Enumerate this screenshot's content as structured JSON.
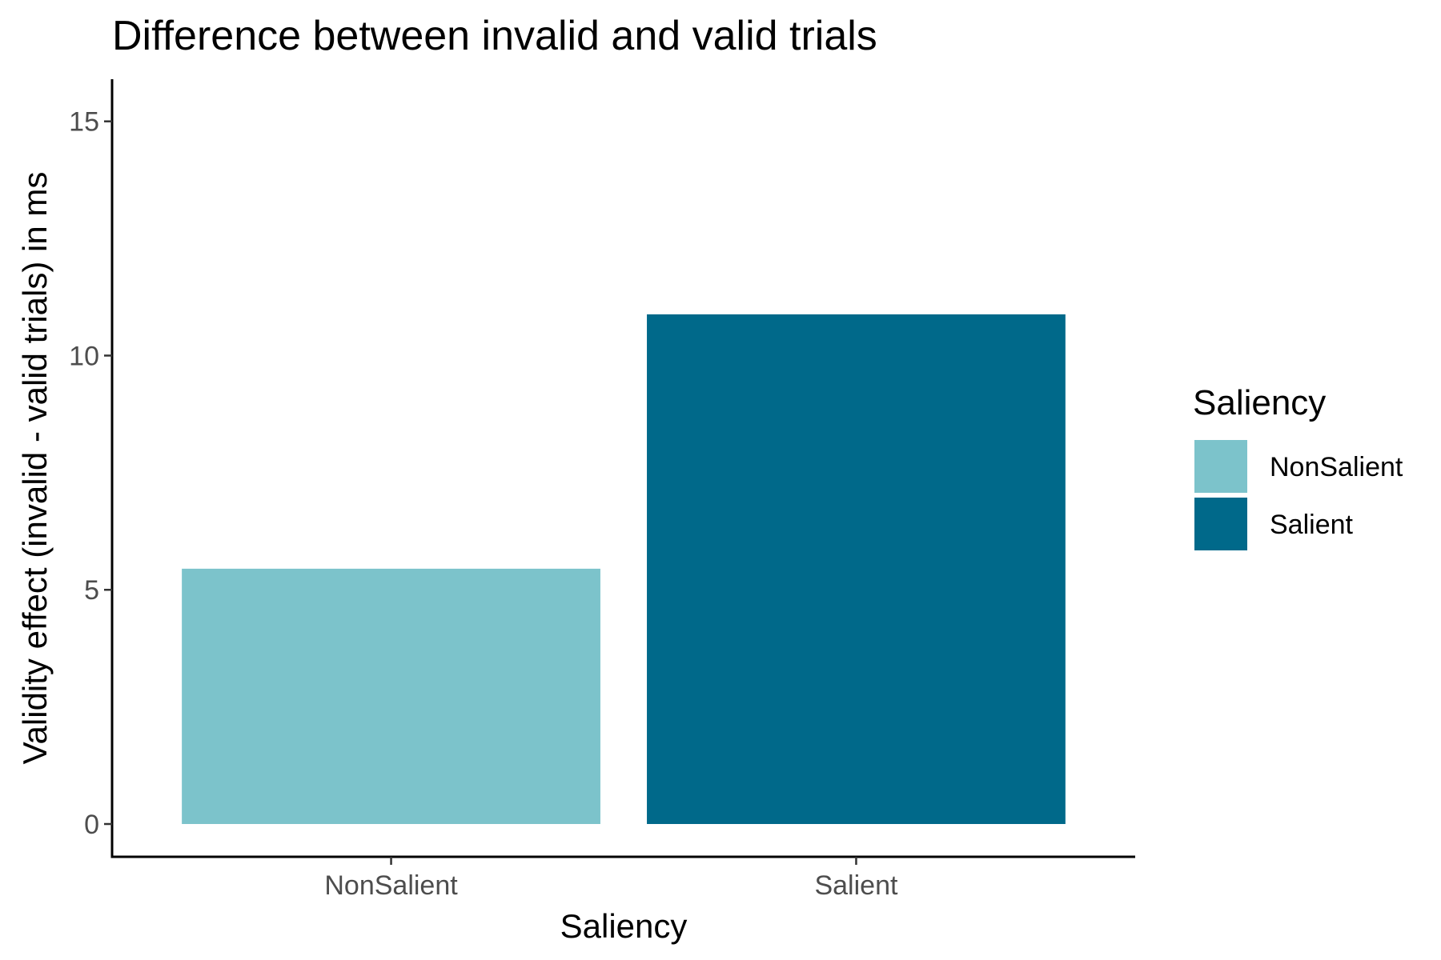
{
  "chart_data": {
    "type": "bar",
    "title": "Difference between invalid and valid trials",
    "xlabel": "Saliency",
    "ylabel": "Validity effect (invalid - valid trials) in ms",
    "categories": [
      "NonSalient",
      "Salient"
    ],
    "values": [
      5.45,
      10.88
    ],
    "colors": [
      "#7cc3cb",
      "#00698a"
    ],
    "ylim": [
      -0.7,
      15.9
    ],
    "yticks": [
      0,
      5,
      10,
      15
    ],
    "grid": false,
    "legend": {
      "title": "Saliency",
      "position": "right",
      "entries": [
        "NonSalient",
        "Salient"
      ]
    }
  }
}
